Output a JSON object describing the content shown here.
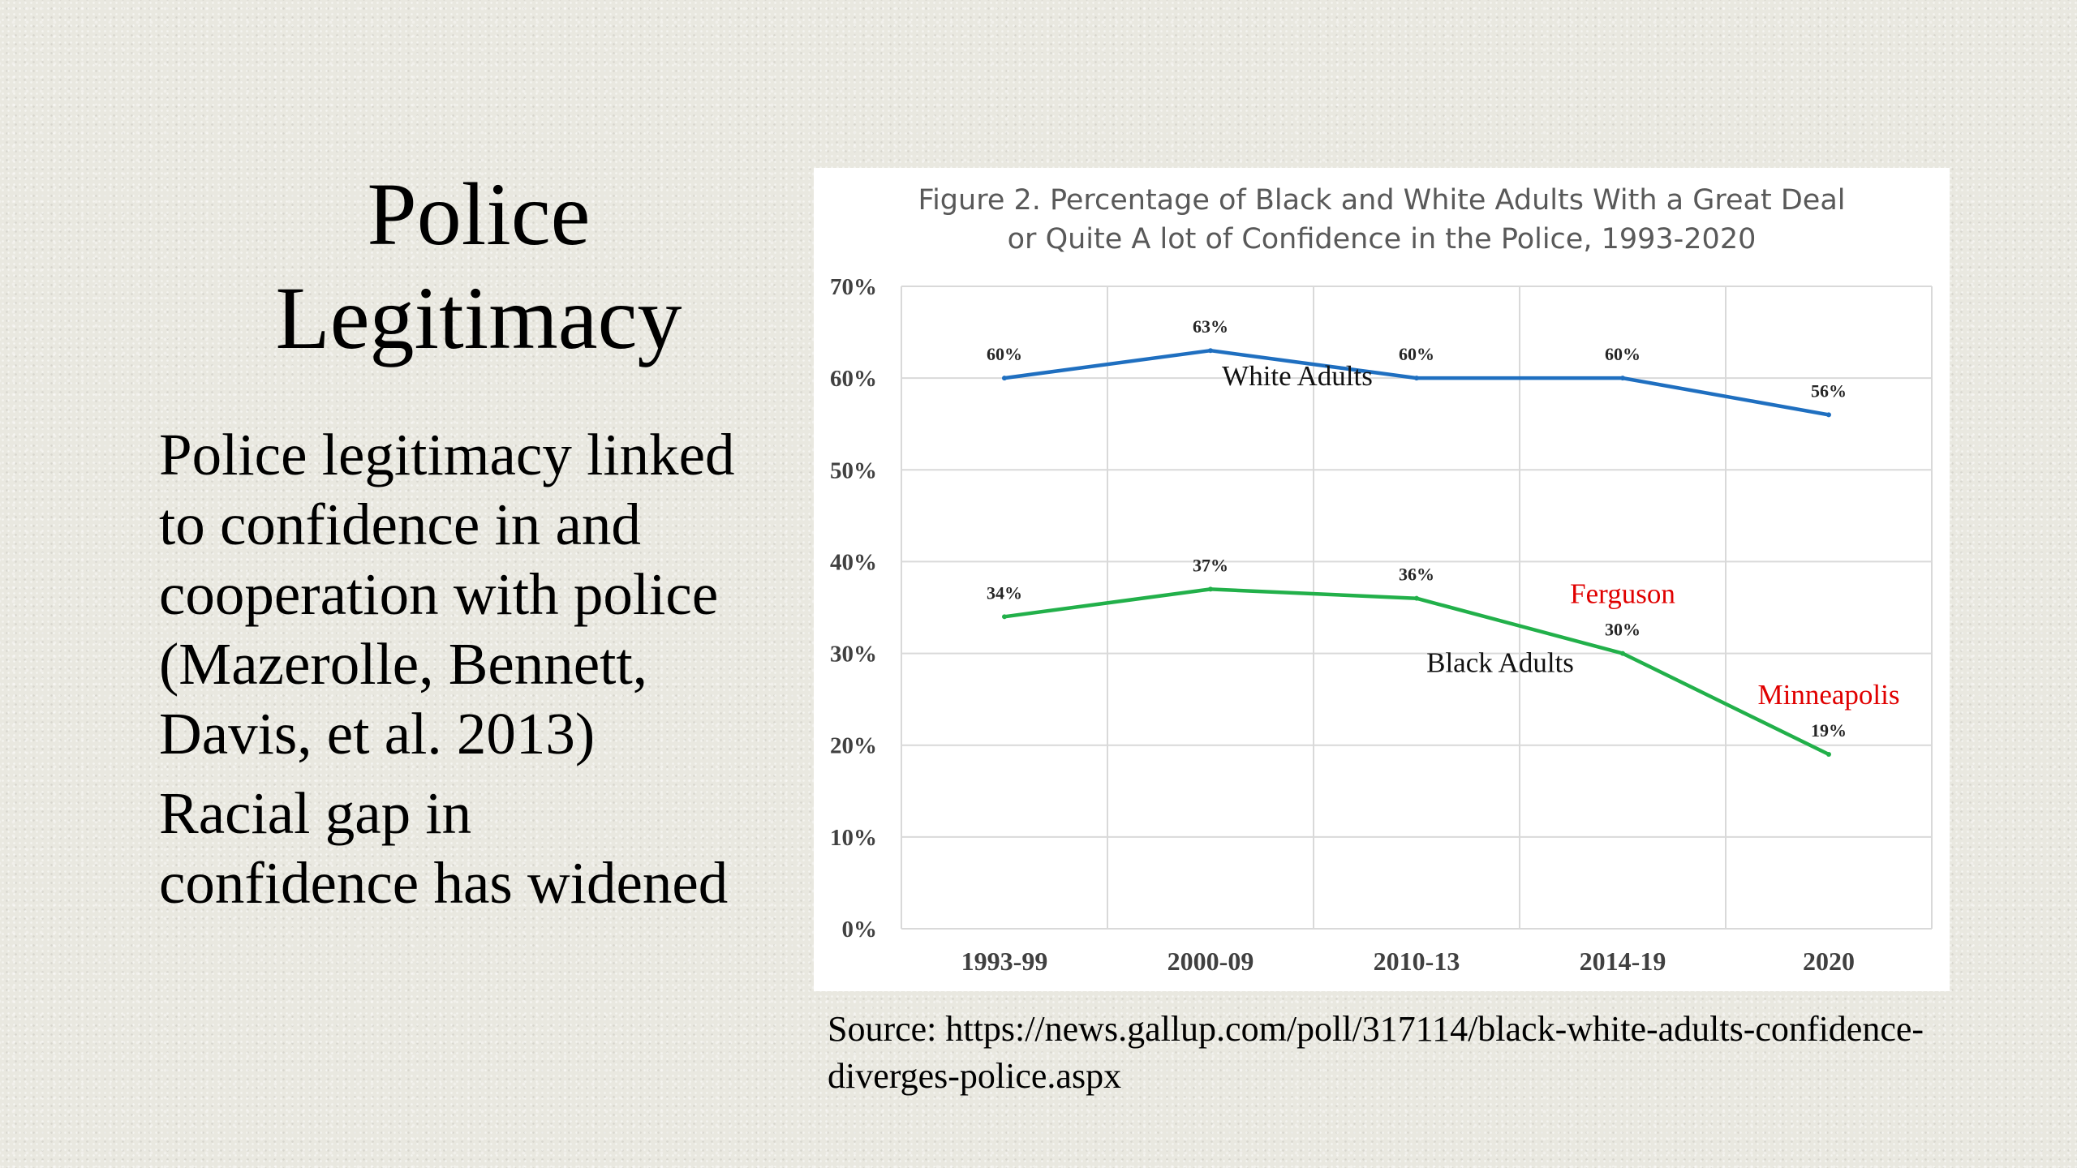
{
  "slide": {
    "title_line1": "Police",
    "title_line2": "Legitimacy",
    "bullets": [
      "Police legitimacy linked\nto confidence in and\ncooperation with police\n(Mazerolle, Bennett,\nDavis, et al. 2013)",
      "Racial gap in\nconfidence has widened"
    ],
    "source": "Source: https://news.gallup.com/poll/317114/black-white-adults-confidence-diverges-police.aspx"
  },
  "colors": {
    "white_series": "#1f6fc0",
    "black_series": "#22b04a",
    "annotation": "#e00000",
    "grid": "#d9d9d9"
  },
  "chart_data": {
    "type": "line",
    "title": "Figure 2. Percentage of Black and White Adults With a Great Deal or Quite A lot of Confidence in the Police, 1993-2020",
    "title_lines": [
      "Figure 2. Percentage of Black and White Adults With a Great Deal",
      "or Quite A lot of Confidence in the Police, 1993-2020"
    ],
    "categories": [
      "1993-99",
      "2000-09",
      "2010-13",
      "2014-19",
      "2020"
    ],
    "y_ticks": [
      "0%",
      "10%",
      "20%",
      "30%",
      "40%",
      "50%",
      "60%",
      "70%"
    ],
    "ylim": [
      0,
      70
    ],
    "grid": true,
    "legend": "none",
    "series": [
      {
        "name": "White Adults",
        "color": "#1f6fc0",
        "values": [
          60,
          63,
          60,
          60,
          56
        ],
        "labels": [
          "60%",
          "63%",
          "60%",
          "60%",
          "56%"
        ]
      },
      {
        "name": "Black Adults",
        "color": "#22b04a",
        "values": [
          34,
          37,
          36,
          30,
          19
        ],
        "labels": [
          "34%",
          "37%",
          "36%",
          "30%",
          "19%"
        ]
      }
    ],
    "annotations": [
      {
        "text": "Ferguson",
        "category": "2014-19",
        "color": "#e00000"
      },
      {
        "text": "Minneapolis",
        "category": "2020",
        "color": "#e00000"
      }
    ]
  }
}
